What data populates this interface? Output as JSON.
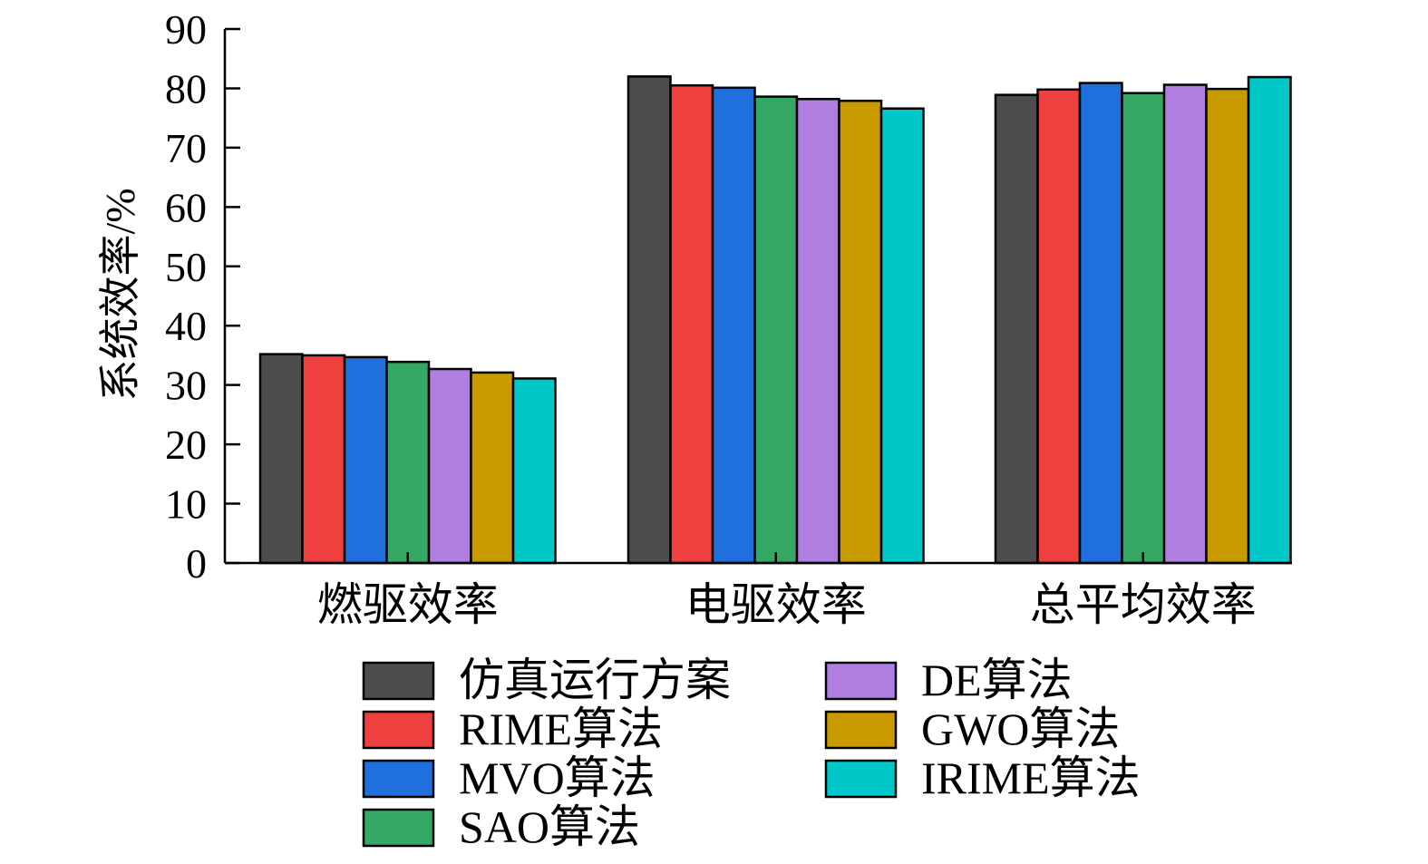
{
  "chart_data": {
    "type": "bar",
    "title": "",
    "xlabel": "",
    "ylabel": "系统效率/%",
    "ylim": [
      0,
      90
    ],
    "yticks": [
      0,
      10,
      20,
      30,
      40,
      50,
      60,
      70,
      80,
      90
    ],
    "grid": false,
    "legend_position": "bottom",
    "categories": [
      "燃驱效率",
      "电驱效率",
      "总平均效率"
    ],
    "series": [
      {
        "name": "仿真运行方案",
        "color": "#4d4d4d",
        "values": [
          35.2,
          82.0,
          78.9
        ]
      },
      {
        "name": "RIME算法",
        "color": "#ef4040",
        "values": [
          35.0,
          80.5,
          79.8
        ]
      },
      {
        "name": "MVO算法",
        "color": "#1f6fdc",
        "values": [
          34.7,
          80.1,
          80.9
        ]
      },
      {
        "name": "SAO算法",
        "color": "#35a866",
        "values": [
          33.9,
          78.6,
          79.2
        ]
      },
      {
        "name": "DE算法",
        "color": "#b07ee0",
        "values": [
          32.7,
          78.2,
          80.6
        ]
      },
      {
        "name": "GWO算法",
        "color": "#c99a00",
        "values": [
          32.1,
          77.9,
          79.9
        ]
      },
      {
        "name": "IRIME算法",
        "color": "#00c8c8",
        "values": [
          31.1,
          76.6,
          81.9
        ]
      }
    ]
  }
}
